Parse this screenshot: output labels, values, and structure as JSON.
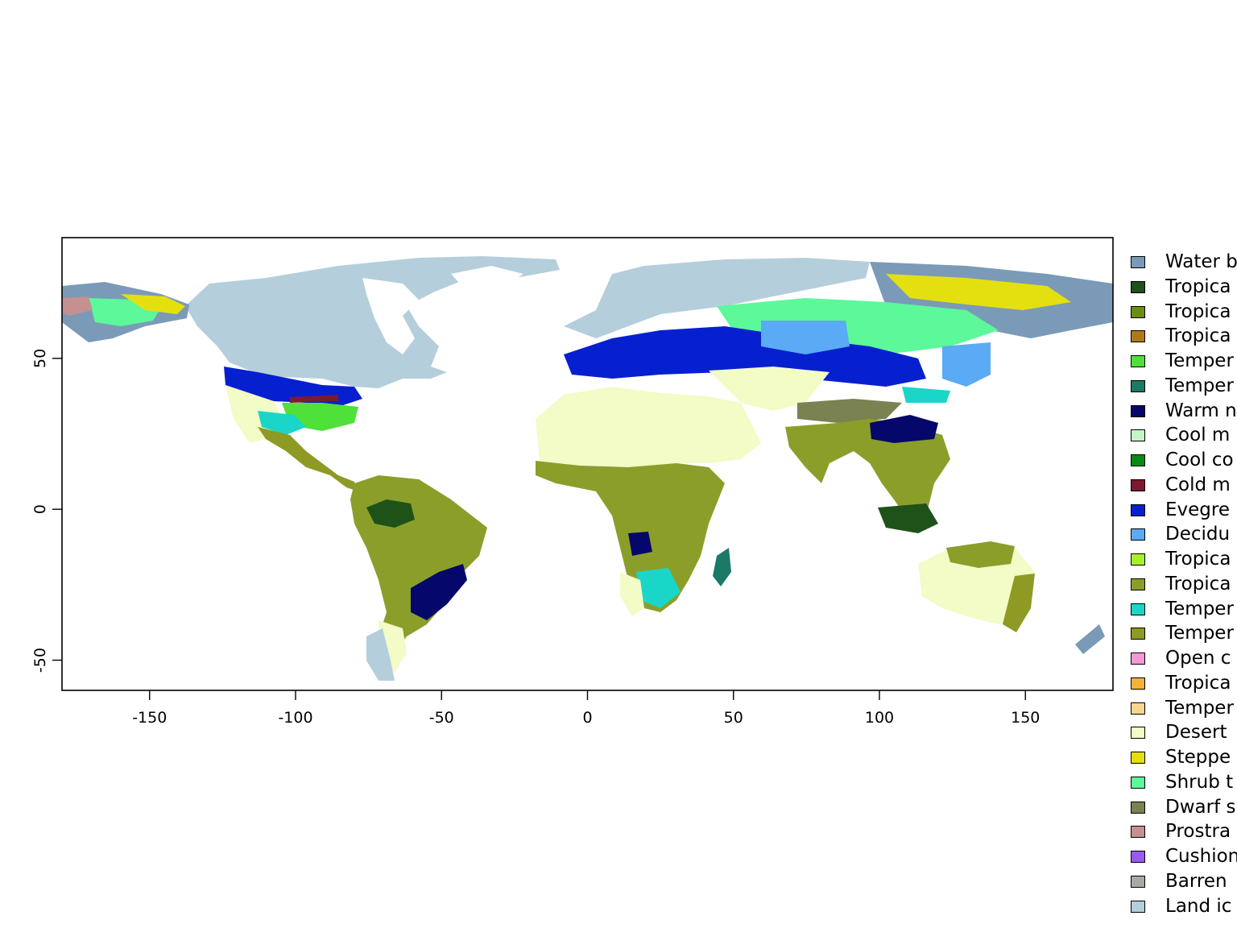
{
  "x_axis": {
    "ticks": [
      -150,
      -100,
      -50,
      0,
      50,
      100,
      150
    ],
    "labels": [
      "-150",
      "-100",
      "-50",
      "0",
      "50",
      "100",
      "150"
    ]
  },
  "y_axis": {
    "ticks": [
      50,
      0,
      -50
    ],
    "labels": [
      "50",
      "0",
      "-50"
    ]
  },
  "extent": {
    "lon": [
      -180,
      180
    ],
    "lat": [
      -60,
      90
    ]
  },
  "legend": {
    "items": [
      {
        "label": "Water b",
        "color": "#7a9ab8"
      },
      {
        "label": "Tropica",
        "color": "#1e5218"
      },
      {
        "label": "Tropica",
        "color": "#6b8e12"
      },
      {
        "label": "Tropica",
        "color": "#b07a1a"
      },
      {
        "label": "Temper",
        "color": "#4fe03a"
      },
      {
        "label": "Temper",
        "color": "#1a7a66"
      },
      {
        "label": "Warm n",
        "color": "#05086a"
      },
      {
        "label": "Cool m",
        "color": "#c5f5c5"
      },
      {
        "label": "Cool co",
        "color": "#068a14"
      },
      {
        "label": "Cold m",
        "color": "#7a1a30"
      },
      {
        "label": "Evegre",
        "color": "#0620d0"
      },
      {
        "label": "Decidu",
        "color": "#5aaaf5"
      },
      {
        "label": "Tropica",
        "color": "#a6f22a"
      },
      {
        "label": "Tropica",
        "color": "#8c9e2a"
      },
      {
        "label": "Temper",
        "color": "#1ad6c8"
      },
      {
        "label": "Temper",
        "color": "#8e9a24"
      },
      {
        "label": "Open c",
        "color": "#f598d6"
      },
      {
        "label": "Tropica",
        "color": "#f5b23a"
      },
      {
        "label": "Temper",
        "color": "#f8d690"
      },
      {
        "label": "Desert",
        "color": "#f3fbc6"
      },
      {
        "label": "Steppe",
        "color": "#e4e010"
      },
      {
        "label": "Shrub t",
        "color": "#5cf89a"
      },
      {
        "label": "Dwarf s",
        "color": "#7a8252"
      },
      {
        "label": "Prostra",
        "color": "#c49090"
      },
      {
        "label": "Cushion",
        "color": "#9a5af0"
      },
      {
        "label": "Barren",
        "color": "#aaa8a0"
      },
      {
        "label": "Land ic",
        "color": "#b4cedc"
      }
    ]
  }
}
